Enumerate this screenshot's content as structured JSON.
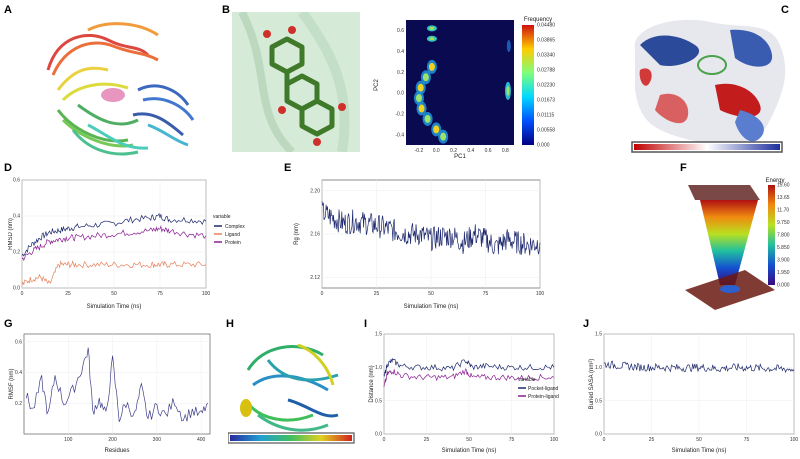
{
  "panel_labels": {
    "a": "A",
    "b": "B",
    "c": "C",
    "d": "D",
    "e": "E",
    "f": "F",
    "g": "G",
    "h": "H",
    "i": "I",
    "j": "J"
  },
  "colors": {
    "complex": "#1f2a6e",
    "protein": "#8b1f94",
    "ligand": "#e8825a",
    "pocket_ligand": "#1f2a6e",
    "protein_ligand": "#8b1f94",
    "rg": "#1f2a6e",
    "sasa": "#1f2a6e",
    "rmsf": "#3f3f8a"
  },
  "pca_colorbar": {
    "title": "Frequency",
    "ticks": [
      "0.04480",
      "0.03865",
      "0.03340",
      "0.02788",
      "0.02230",
      "0.01673",
      "0.01115",
      "0.00558",
      "0.000"
    ]
  },
  "fel_colorbar": {
    "title": "Energy",
    "ticks": [
      "15.60",
      "13.65",
      "11.70",
      "9.750",
      "7.800",
      "5.850",
      "3.900",
      "1.950",
      "0.000"
    ]
  },
  "legend_d": {
    "title": "variable",
    "items": [
      "Complex",
      "Ligand",
      "Protein"
    ]
  },
  "legend_i": {
    "title": "variable",
    "items": [
      "Pocket-ligand",
      "Protein-ligand"
    ]
  },
  "chart_data": [
    {
      "panel": "B-right",
      "type": "heatmap",
      "title": "",
      "xlabel": "PC1",
      "ylabel": "PC2",
      "xlim": [
        -0.35,
        0.9
      ],
      "ylim": [
        -0.5,
        0.7
      ],
      "xticks": [
        "-0.2",
        "0.0",
        "0.2",
        "0.4",
        "0.6",
        "0.8"
      ],
      "yticks": [
        "0.6",
        "0.4",
        "0.2",
        "0.0",
        "-0.2",
        "-0.4"
      ],
      "colorbar_title": "Frequency",
      "colorbar_range": [
        0.0,
        0.0448
      ]
    },
    {
      "panel": "D",
      "type": "line",
      "xlabel": "Simulation Time (ns)",
      "ylabel": "RMSD (nm)",
      "xlim": [
        0,
        100
      ],
      "ylim": [
        0,
        0.6
      ],
      "xticks": [
        "0",
        "25",
        "50",
        "75",
        "100"
      ],
      "yticks": [
        "0.0",
        "0.2",
        "0.4",
        "0.6"
      ],
      "x": [
        0,
        5,
        10,
        15,
        20,
        25,
        30,
        40,
        50,
        60,
        70,
        75,
        80,
        90,
        100
      ],
      "series": [
        {
          "name": "Complex",
          "values": [
            0.18,
            0.24,
            0.28,
            0.31,
            0.32,
            0.33,
            0.34,
            0.35,
            0.36,
            0.38,
            0.39,
            0.4,
            0.38,
            0.38,
            0.37
          ]
        },
        {
          "name": "Ligand",
          "values": [
            0.02,
            0.05,
            0.06,
            0.02,
            0.13,
            0.13,
            0.13,
            0.13,
            0.13,
            0.13,
            0.13,
            0.13,
            0.13,
            0.13,
            0.13
          ]
        },
        {
          "name": "Protein",
          "values": [
            0.16,
            0.2,
            0.23,
            0.26,
            0.27,
            0.28,
            0.28,
            0.29,
            0.3,
            0.31,
            0.32,
            0.33,
            0.32,
            0.3,
            0.29
          ]
        }
      ]
    },
    {
      "panel": "E",
      "type": "line",
      "xlabel": "Simulation Time (ns)",
      "ylabel": "Rg (nm)",
      "xlim": [
        0,
        100
      ],
      "ylim": [
        2.11,
        2.21
      ],
      "xticks": [
        "0",
        "25",
        "50",
        "75",
        "100"
      ],
      "yticks": [
        "2.20",
        "2.16",
        "2.12"
      ],
      "x": [
        0,
        5,
        10,
        15,
        20,
        25,
        30,
        35,
        40,
        45,
        50,
        55,
        60,
        65,
        70,
        75,
        80,
        85,
        90,
        95,
        100
      ],
      "series": [
        {
          "name": "Rg",
          "values": [
            2.18,
            2.175,
            2.17,
            2.172,
            2.17,
            2.168,
            2.165,
            2.162,
            2.16,
            2.16,
            2.155,
            2.158,
            2.158,
            2.152,
            2.16,
            2.155,
            2.148,
            2.155,
            2.152,
            2.15,
            2.152
          ]
        }
      ]
    },
    {
      "panel": "G",
      "type": "line",
      "xlabel": "Residues",
      "ylabel": "RMSF (nm)",
      "xlim": [
        0,
        420
      ],
      "ylim": [
        0,
        0.65
      ],
      "xticks": [
        "100",
        "200",
        "300",
        "400"
      ],
      "yticks": [
        "0.6",
        "0.4",
        "0.2"
      ],
      "x": [
        5,
        20,
        40,
        55,
        70,
        90,
        110,
        130,
        145,
        155,
        170,
        185,
        200,
        215,
        230,
        250,
        265,
        280,
        300,
        320,
        340,
        360,
        380,
        400,
        415
      ],
      "series": [
        {
          "name": "RMSF",
          "values": [
            0.25,
            0.15,
            0.35,
            0.12,
            0.38,
            0.2,
            0.28,
            0.42,
            0.55,
            0.15,
            0.22,
            0.12,
            0.48,
            0.1,
            0.2,
            0.12,
            0.3,
            0.1,
            0.18,
            0.12,
            0.22,
            0.1,
            0.15,
            0.12,
            0.2
          ]
        }
      ]
    },
    {
      "panel": "I",
      "type": "line",
      "xlabel": "Simulation Time (ns)",
      "ylabel": "Distance (nm)",
      "xlim": [
        0,
        100
      ],
      "ylim": [
        0,
        1.5
      ],
      "xticks": [
        "0",
        "25",
        "50",
        "75",
        "100"
      ],
      "yticks": [
        "1.5",
        "1.0",
        "0.5",
        "0.0"
      ],
      "x": [
        0,
        2,
        5,
        10,
        20,
        30,
        40,
        48,
        52,
        60,
        70,
        80,
        90,
        100
      ],
      "series": [
        {
          "name": "Pocket-ligand",
          "values": [
            0.85,
            1.05,
            1.1,
            1.02,
            1.0,
            1.0,
            0.98,
            1.1,
            1.0,
            1.02,
            1.0,
            1.0,
            1.0,
            1.0
          ]
        },
        {
          "name": "Protein-ligand",
          "values": [
            0.7,
            0.9,
            0.95,
            0.88,
            0.85,
            0.85,
            0.85,
            0.95,
            0.85,
            0.85,
            0.85,
            0.84,
            0.85,
            0.85
          ]
        }
      ]
    },
    {
      "panel": "J",
      "type": "line",
      "xlabel": "Simulation Time (ns)",
      "ylabel": "Buried SASA (nm²)",
      "xlim": [
        0,
        100
      ],
      "ylim": [
        0,
        1.5
      ],
      "xticks": [
        "0",
        "25",
        "50",
        "75",
        "100"
      ],
      "yticks": [
        "1.5",
        "1.0",
        "0.5",
        "0.0"
      ],
      "x": [
        0,
        10,
        20,
        30,
        40,
        50,
        60,
        70,
        80,
        90,
        100
      ],
      "series": [
        {
          "name": "Buried SASA",
          "values": [
            1.05,
            1.02,
            1.0,
            1.0,
            0.99,
            1.0,
            0.98,
            1.0,
            0.99,
            0.98,
            0.97
          ]
        }
      ]
    }
  ]
}
